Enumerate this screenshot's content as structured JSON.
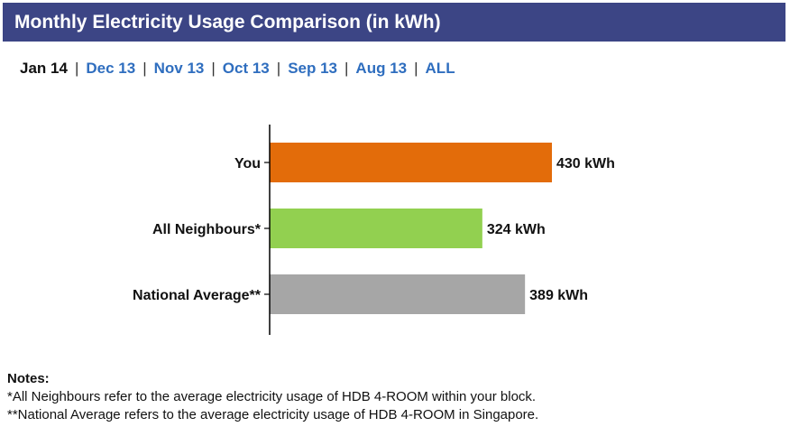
{
  "header": {
    "title": "Monthly Electricity Usage Comparison (in kWh)"
  },
  "tabs": [
    {
      "label": "Jan 14",
      "active": true
    },
    {
      "label": "Dec 13",
      "active": false
    },
    {
      "label": "Nov 13",
      "active": false
    },
    {
      "label": "Oct 13",
      "active": false
    },
    {
      "label": "Sep 13",
      "active": false
    },
    {
      "label": "Aug 13",
      "active": false
    },
    {
      "label": "ALL",
      "active": false
    }
  ],
  "tab_separator": "|",
  "chart_data": {
    "type": "bar",
    "orientation": "horizontal",
    "categories": [
      "You",
      "All Neighbours*",
      "National Average**"
    ],
    "values": [
      430,
      324,
      389
    ],
    "value_labels": [
      "430 kWh",
      "324 kWh",
      "389 kWh"
    ],
    "colors": [
      "#e36c0a",
      "#92d050",
      "#a6a6a6"
    ],
    "xlim": [
      0,
      430
    ],
    "grid": false
  },
  "notes": {
    "title": "Notes:",
    "lines": [
      "*All Neighbours refer to the average electricity usage of HDB 4-ROOM within your block.",
      "**National Average refers to the average electricity usage of HDB 4-ROOM in Singapore."
    ]
  }
}
